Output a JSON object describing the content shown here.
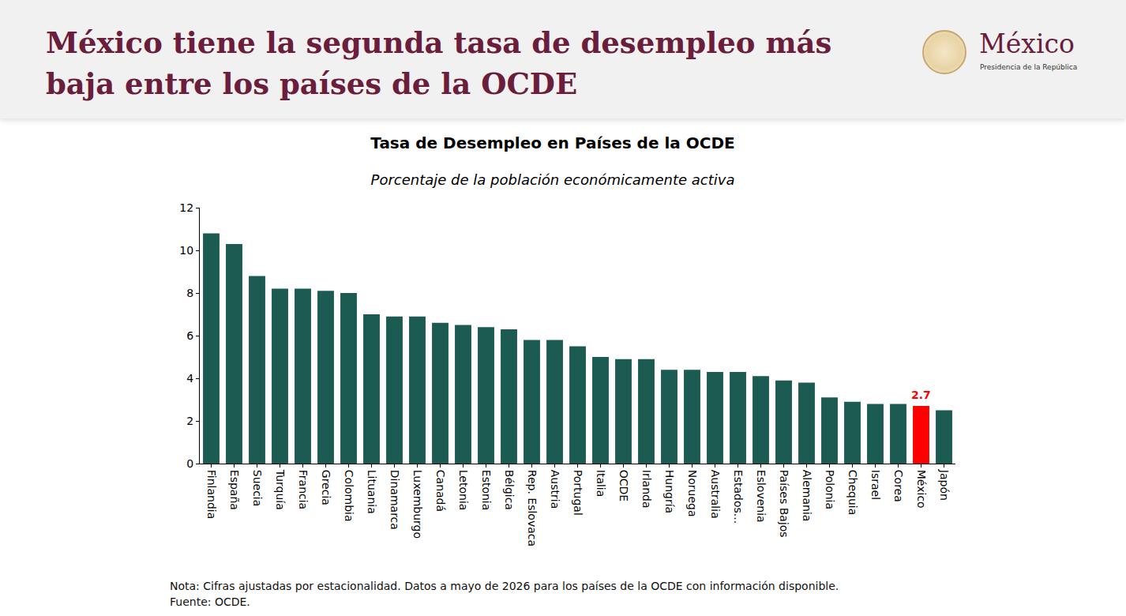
{
  "header": {
    "title": "México tiene la segunda tasa de desempleo más baja entre los países de la OCDE",
    "logo_text": "México",
    "logo_subtext": "Presidencia de la República"
  },
  "chart_data": {
    "type": "bar",
    "title": "Tasa de Desempleo en Países de la OCDE",
    "subtitle": "Porcentaje de la población económicamente activa",
    "categories": [
      "Finlandia",
      "España",
      "Suecia",
      "Turquía",
      "Francia",
      "Grecia",
      "Colombia",
      "Lituania",
      "Dinamarca",
      "Luxemburgo",
      "Canadá",
      "Letonia",
      "Estonia",
      "Bélgica",
      "Rep. Eslovaca",
      "Austria",
      "Portugal",
      "Italia",
      "OCDE",
      "Irlanda",
      "Hungría",
      "Noruega",
      "Australia",
      "Estados...",
      "Eslovenia",
      "Países Bajos",
      "Alemania",
      "Polonia",
      "Chequia",
      "Israel",
      "Corea",
      "México",
      "Japón"
    ],
    "values": [
      10.8,
      10.3,
      8.8,
      8.2,
      8.2,
      8.1,
      8.0,
      7.0,
      6.9,
      6.9,
      6.6,
      6.5,
      6.4,
      6.3,
      5.8,
      5.8,
      5.5,
      5.0,
      4.9,
      4.9,
      4.4,
      4.4,
      4.3,
      4.3,
      4.1,
      3.9,
      3.8,
      3.1,
      2.9,
      2.8,
      2.8,
      2.7,
      2.5
    ],
    "colors": [
      "#1b5b51",
      "#1b5b51",
      "#1b5b51",
      "#1b5b51",
      "#1b5b51",
      "#1b5b51",
      "#1b5b51",
      "#1b5b51",
      "#1b5b51",
      "#1b5b51",
      "#1b5b51",
      "#1b5b51",
      "#1b5b51",
      "#1b5b51",
      "#1b5b51",
      "#1b5b51",
      "#1b5b51",
      "#1b5b51",
      "#1b5b51",
      "#1b5b51",
      "#1b5b51",
      "#1b5b51",
      "#1b5b51",
      "#1b5b51",
      "#1b5b51",
      "#1b5b51",
      "#1b5b51",
      "#1b5b51",
      "#1b5b51",
      "#1b5b51",
      "#1b5b51",
      "#ff0000",
      "#1b5b51"
    ],
    "annotations": [
      {
        "category": "México",
        "value": 2.7,
        "text": "2.7",
        "color": "#ff0000"
      }
    ],
    "ylim": [
      0,
      12
    ],
    "yticks": [
      0,
      2,
      4,
      6,
      8,
      10,
      12
    ],
    "grid": false
  },
  "footer": {
    "note": "Nota: Cifras ajustadas por estacionalidad. Datos a mayo de 2026 para los países de la OCDE con información disponible.",
    "source": "Fuente: OCDE."
  }
}
